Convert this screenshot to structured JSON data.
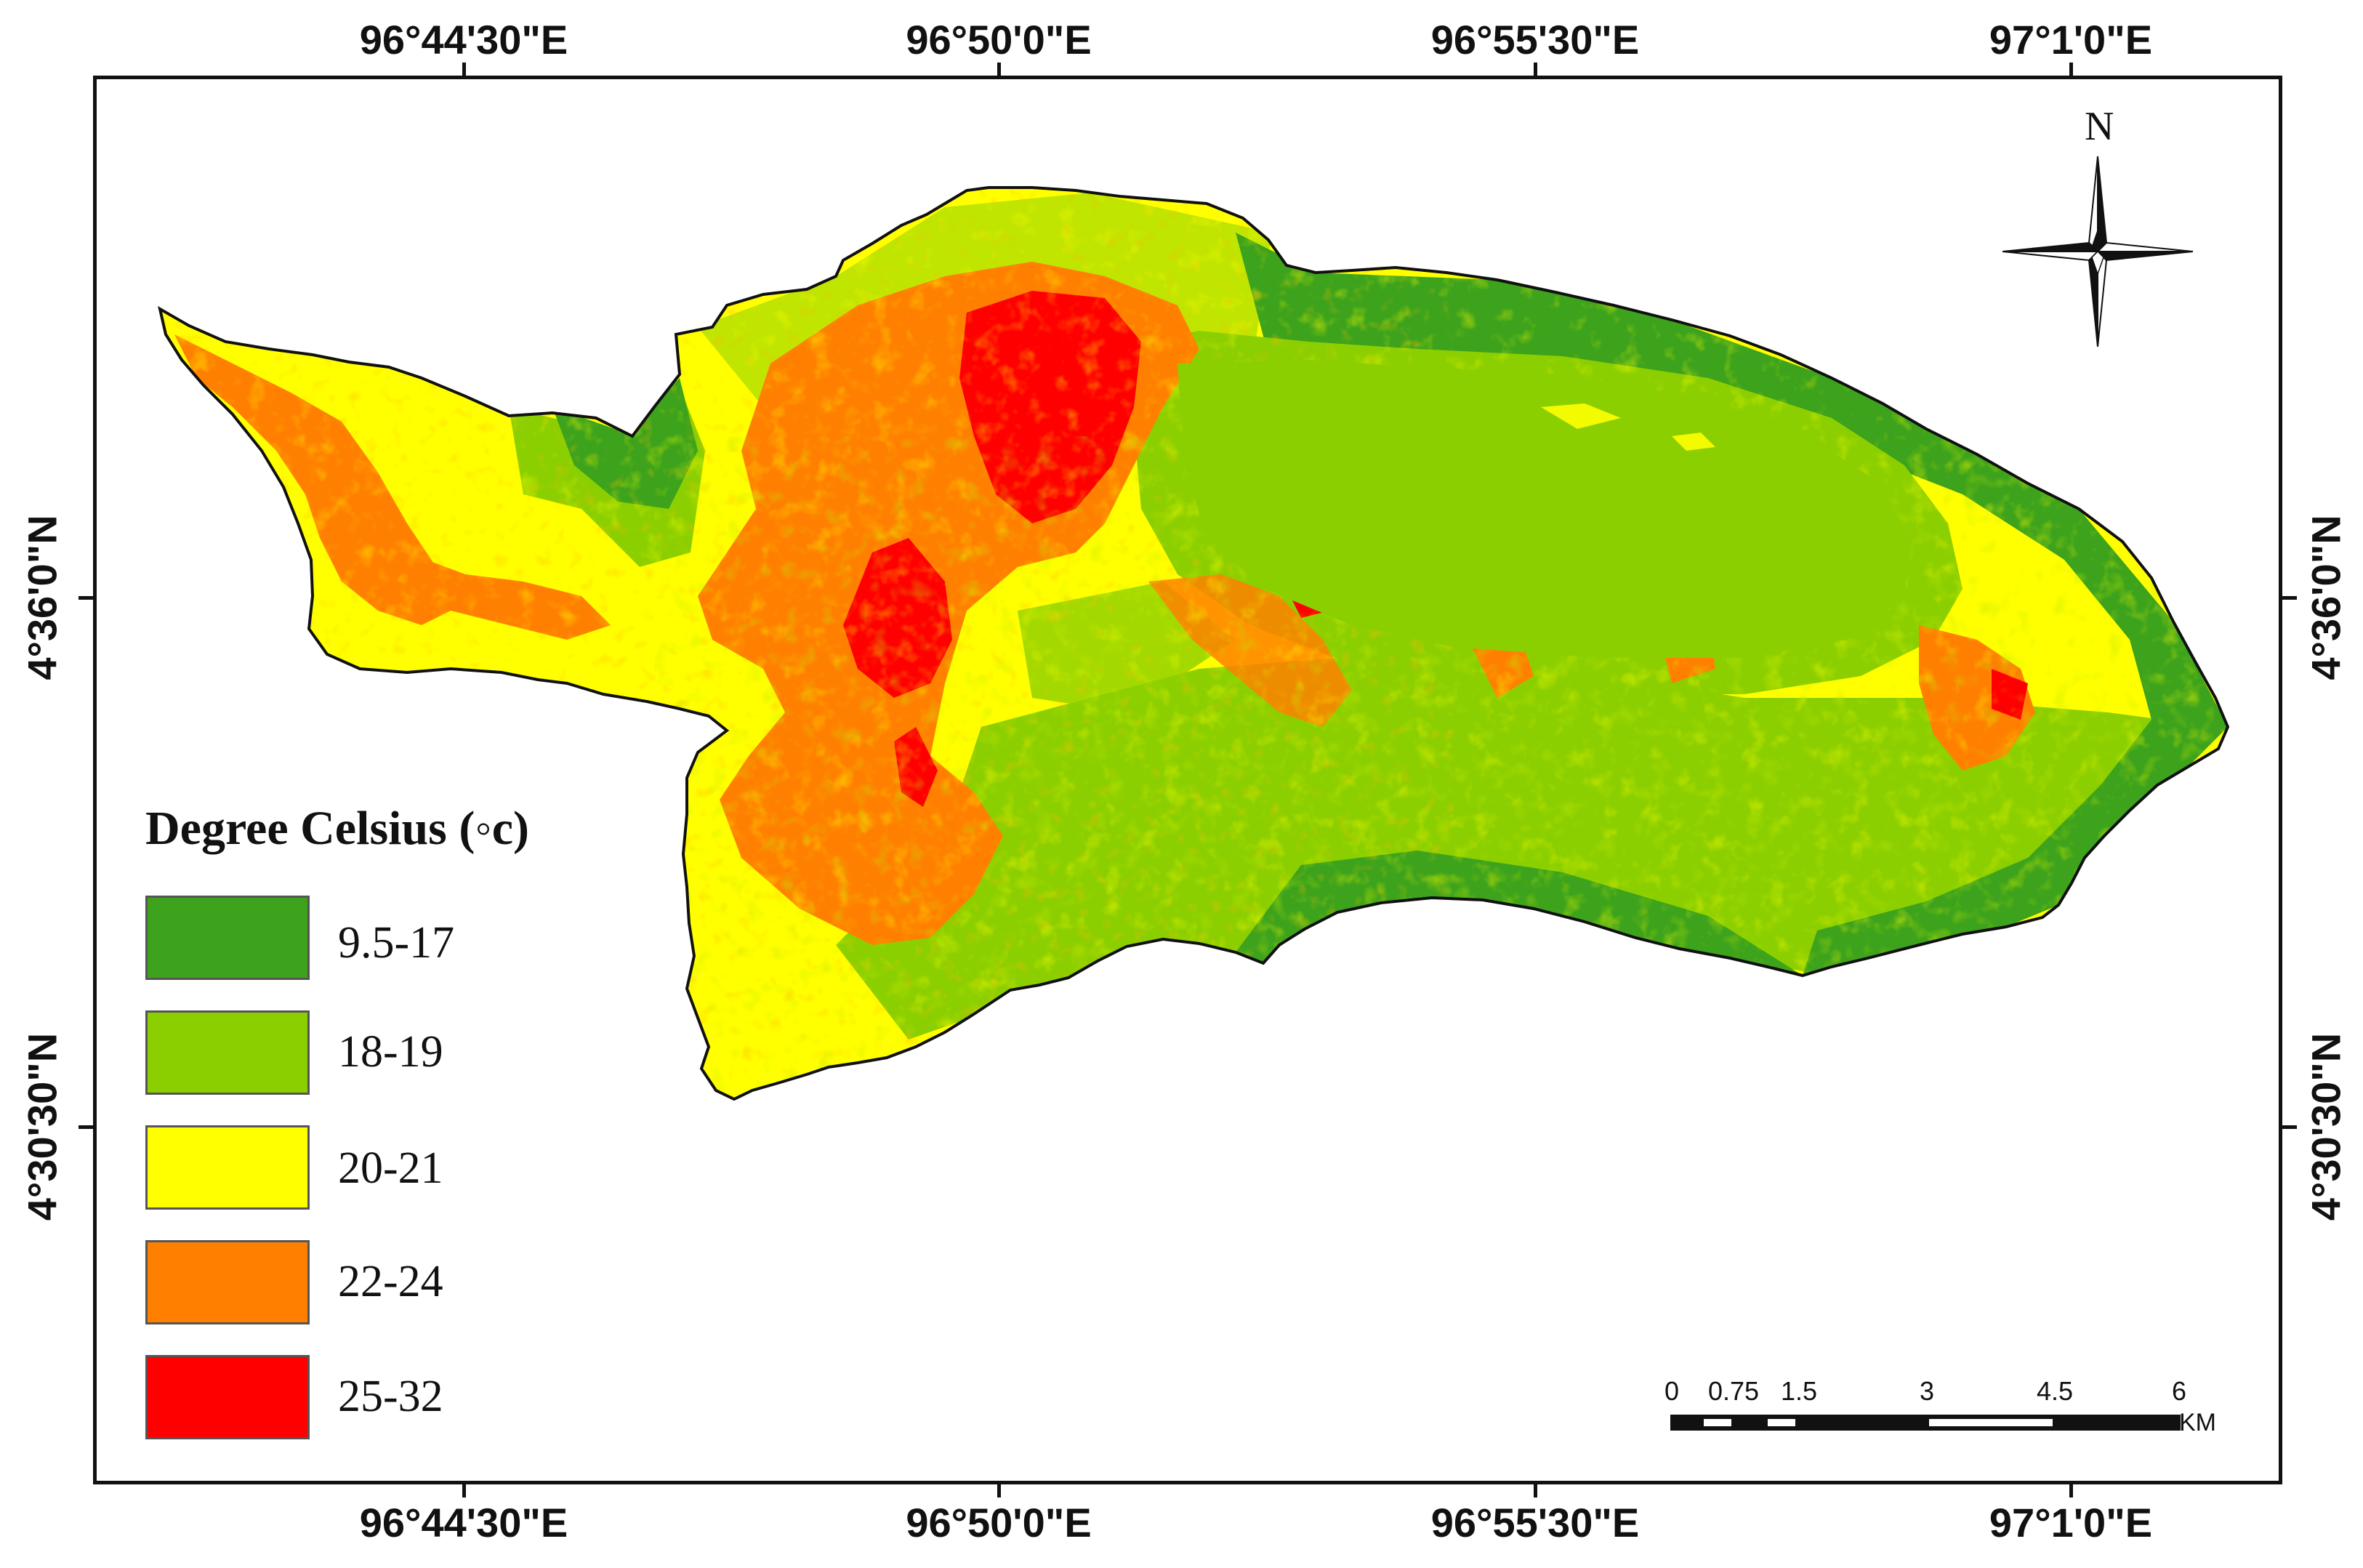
{
  "map": {
    "top_lon_labels": [
      "96°44'30\"E",
      "96°50'0\"E",
      "96°55'30\"E",
      "97°1'0\"E"
    ],
    "bottom_lon_labels": [
      "96°44'30\"E",
      "96°50'0\"E",
      "96°55'30\"E",
      "97°1'0\"E"
    ],
    "left_lat_labels": [
      "4°36'0\"N",
      "4°30'30\"N"
    ],
    "right_lat_labels": [
      "4°36'0\"N",
      "4°30'30\"N"
    ]
  },
  "legend": {
    "title": "Degree Celsius (◦c)",
    "classes": [
      {
        "label": "9.5-17",
        "color": "#3da31c"
      },
      {
        "label": "18-19",
        "color": "#8ccf00"
      },
      {
        "label": "20-21",
        "color": "#ffff00"
      },
      {
        "label": "22-24",
        "color": "#ff8000"
      },
      {
        "label": "25-32",
        "color": "#ff0000"
      }
    ]
  },
  "north_arrow": {
    "label": "N",
    "icon": "compass-rose-icon"
  },
  "scale_bar": {
    "ticks": [
      "0",
      "0.75",
      "1.5",
      "3",
      "4.5",
      "6"
    ],
    "unit": "KM"
  }
}
